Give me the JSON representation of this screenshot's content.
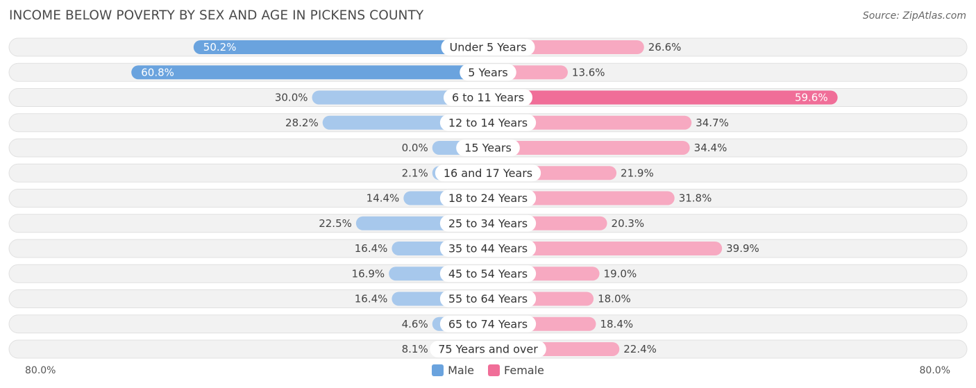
{
  "chart_data": {
    "type": "bar",
    "orientation": "horizontal-diverging",
    "title": "INCOME BELOW POVERTY BY SEX AND AGE IN PICKENS COUNTY",
    "source": "Source: ZipAtlas.com",
    "categories": [
      "Under 5 Years",
      "5 Years",
      "6 to 11 Years",
      "12 to 14 Years",
      "15 Years",
      "16 and 17 Years",
      "18 to 24 Years",
      "25 to 34 Years",
      "35 to 44 Years",
      "45 to 54 Years",
      "55 to 64 Years",
      "65 to 74 Years",
      "75 Years and over"
    ],
    "series": [
      {
        "name": "Male",
        "values": [
          50.2,
          60.8,
          30.0,
          28.2,
          0.0,
          2.1,
          14.4,
          22.5,
          16.4,
          16.9,
          16.4,
          4.6,
          8.1
        ],
        "labels": [
          "50.2%",
          "60.8%",
          "30.0%",
          "28.2%",
          "0.0%",
          "2.1%",
          "14.4%",
          "22.5%",
          "16.4%",
          "16.9%",
          "16.4%",
          "4.6%",
          "8.1%"
        ]
      },
      {
        "name": "Female",
        "values": [
          26.6,
          13.6,
          59.6,
          34.7,
          34.4,
          21.9,
          31.8,
          20.3,
          39.9,
          19.0,
          18.0,
          18.4,
          22.4
        ],
        "labels": [
          "26.6%",
          "13.6%",
          "59.6%",
          "34.7%",
          "34.4%",
          "21.9%",
          "31.8%",
          "20.3%",
          "39.9%",
          "19.0%",
          "18.0%",
          "18.4%",
          "22.4%"
        ]
      }
    ],
    "xlim": [
      -80,
      80
    ],
    "axis_min_label": "80.0%",
    "axis_max_label": "80.0%",
    "legend": [
      "Male",
      "Female"
    ],
    "colors": {
      "male": "#6aa3de",
      "male_light": "#a7c8ec",
      "female": "#f06e98",
      "female_light": "#f7a9c1",
      "row_bg": "#f2f2f2",
      "row_border": "#e0e0e0"
    }
  }
}
